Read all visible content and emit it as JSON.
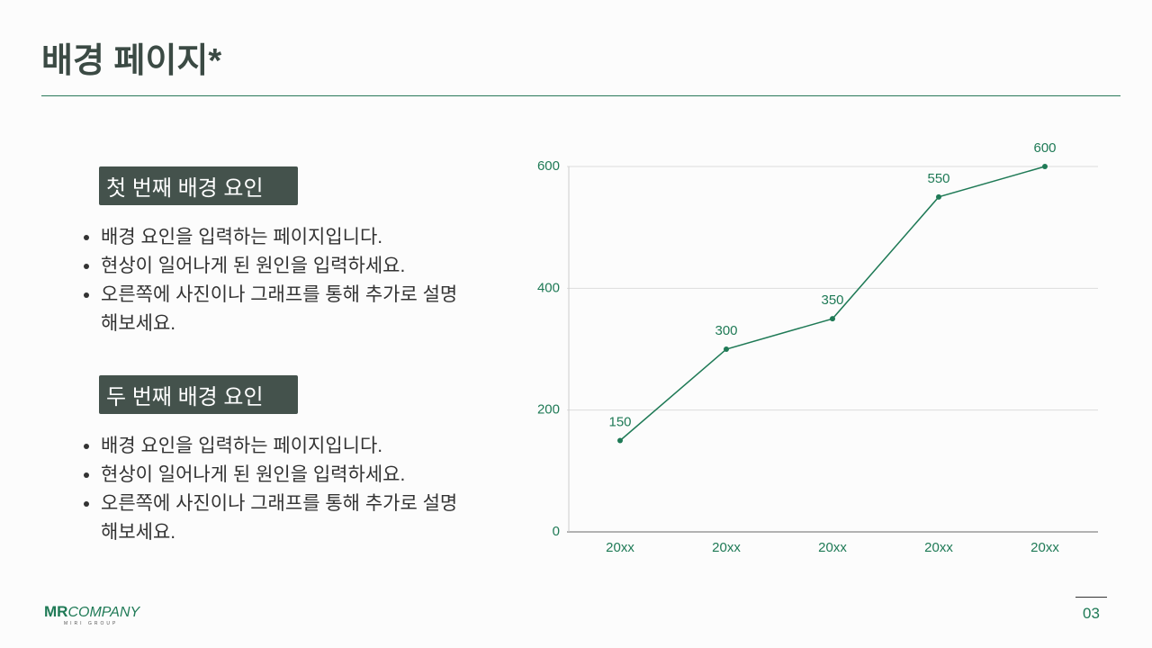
{
  "header": {
    "title": "배경 페이지*"
  },
  "sections": [
    {
      "heading": "첫 번째 배경 요인",
      "bullets": [
        "배경 요인을 입력하는 페이지입니다.",
        "현상이 일어나게 된 원인을 입력하세요.",
        "오른쪽에 사진이나 그래프를 통해 추가로 설명해보세요."
      ]
    },
    {
      "heading": "두 번째 배경 요인",
      "bullets": [
        "배경 요인을 입력하는 페이지입니다.",
        "현상이 일어나게 된 원인을 입력하세요.",
        "오른쪽에 사진이나 그래프를 통해 추가로 설명해보세요."
      ]
    }
  ],
  "chart_data": {
    "type": "line",
    "categories": [
      "20xx",
      "20xx",
      "20xx",
      "20xx",
      "20xx"
    ],
    "values": [
      150,
      300,
      350,
      550,
      600
    ],
    "color": "#1f7a56",
    "ylim": [
      0,
      600
    ],
    "yticks": [
      0,
      200,
      400,
      600
    ],
    "grid": true
  },
  "footer": {
    "logo_mark": "MR",
    "logo_name": "COMPANY",
    "logo_tagline": "MIRI GROUP",
    "page_number": "03"
  }
}
